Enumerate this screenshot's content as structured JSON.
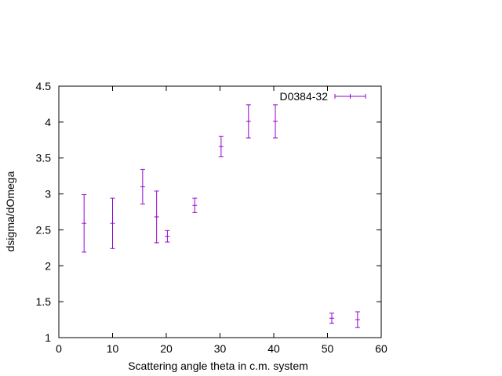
{
  "chart_data": {
    "type": "scatter",
    "title": "",
    "xlabel": "Scattering angle theta in c.m. system",
    "ylabel": "dsigma/dOmega",
    "xlim": [
      0,
      60
    ],
    "ylim": [
      1,
      4.5
    ],
    "xticks": [
      0,
      10,
      20,
      30,
      40,
      50,
      60
    ],
    "yticks": [
      1,
      1.5,
      2,
      2.5,
      3,
      3.5,
      4,
      4.5
    ],
    "xtick_labels": [
      "0",
      "10",
      "20",
      "30",
      "40",
      "50",
      "60"
    ],
    "ytick_labels": [
      "1",
      "1.5",
      "2",
      "2.5",
      "3",
      "3.5",
      "4",
      "4.5"
    ],
    "grid": false,
    "legend_position": "top-right",
    "series": [
      {
        "name": "D0384-32",
        "color": "#9400d3",
        "style": "errorbars",
        "points": [
          {
            "x": 4.7,
            "y": 2.59,
            "yerr": 0.4
          },
          {
            "x": 10.0,
            "y": 2.59,
            "yerr": 0.35
          },
          {
            "x": 15.6,
            "y": 3.1,
            "yerr": 0.24
          },
          {
            "x": 18.2,
            "y": 2.68,
            "yerr": 0.36
          },
          {
            "x": 20.2,
            "y": 2.41,
            "yerr": 0.08
          },
          {
            "x": 25.3,
            "y": 2.84,
            "yerr": 0.1
          },
          {
            "x": 30.2,
            "y": 3.66,
            "yerr": 0.14
          },
          {
            "x": 35.3,
            "y": 4.01,
            "yerr": 0.23
          },
          {
            "x": 40.3,
            "y": 4.01,
            "yerr": 0.23
          },
          {
            "x": 50.8,
            "y": 1.27,
            "yerr": 0.07
          },
          {
            "x": 55.6,
            "y": 1.25,
            "yerr": 0.11
          }
        ]
      }
    ]
  }
}
